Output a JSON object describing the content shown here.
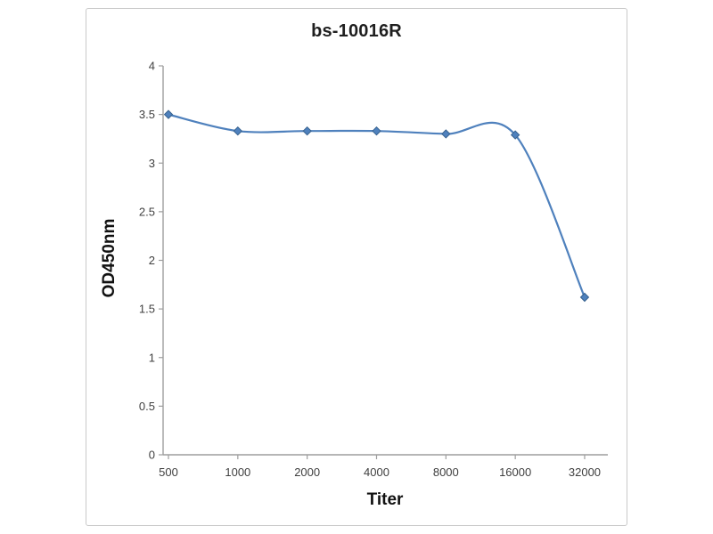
{
  "chart_data": {
    "type": "line",
    "title": "bs-10016R",
    "xlabel": "Titer",
    "ylabel": "OD450nm",
    "categories": [
      "500",
      "1000",
      "2000",
      "4000",
      "8000",
      "16000",
      "32000"
    ],
    "values": [
      3.5,
      3.33,
      3.33,
      3.33,
      3.3,
      3.29,
      1.62
    ],
    "ylim": [
      0,
      4
    ],
    "ytick_step": 0.5,
    "grid": false,
    "legend": "none",
    "smooth": true,
    "line_color": "#4f81bd",
    "marker": "diamond",
    "marker_color": "#4f81bd",
    "marker_stroke_color": "#36618e",
    "axis_color": "#9e9e9e",
    "tick_label_color": "#3f3f3f"
  }
}
